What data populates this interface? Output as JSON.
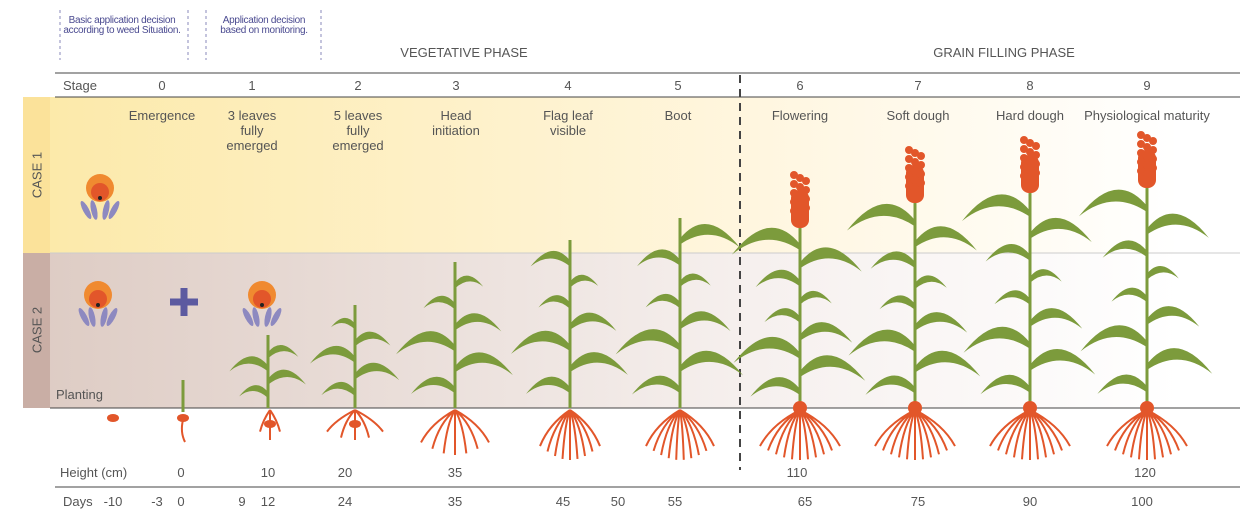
{
  "notes": [
    "Basic application decision according to weed Situation.",
    "Application decision based on monitoring."
  ],
  "phases": [
    "VEGETATIVE PHASE",
    "GRAIN FILLING PHASE"
  ],
  "stage_label": "Stage",
  "stages": [
    {
      "number": 0,
      "name": "Emergence"
    },
    {
      "number": 1,
      "name": "3 leaves fully emerged"
    },
    {
      "number": 2,
      "name": "5 leaves fully emerged"
    },
    {
      "number": 3,
      "name": "Head initiation"
    },
    {
      "number": 4,
      "name": "Flag leaf visible"
    },
    {
      "number": 5,
      "name": "Boot"
    },
    {
      "number": 6,
      "name": "Flowering"
    },
    {
      "number": 7,
      "name": "Soft dough"
    },
    {
      "number": 8,
      "name": "Hard dough"
    },
    {
      "number": 9,
      "name": "Physiological maturity"
    }
  ],
  "cases": [
    "CASE 1",
    "CASE 2"
  ],
  "planting": "Planting",
  "height": {
    "label": "Height (cm)",
    "values": [
      0,
      10,
      20,
      35,
      110,
      120
    ]
  },
  "days": {
    "label": "Days",
    "values": [
      -10,
      -3,
      0,
      9,
      12,
      24,
      35,
      45,
      50,
      55,
      65,
      75,
      90,
      100
    ]
  }
}
